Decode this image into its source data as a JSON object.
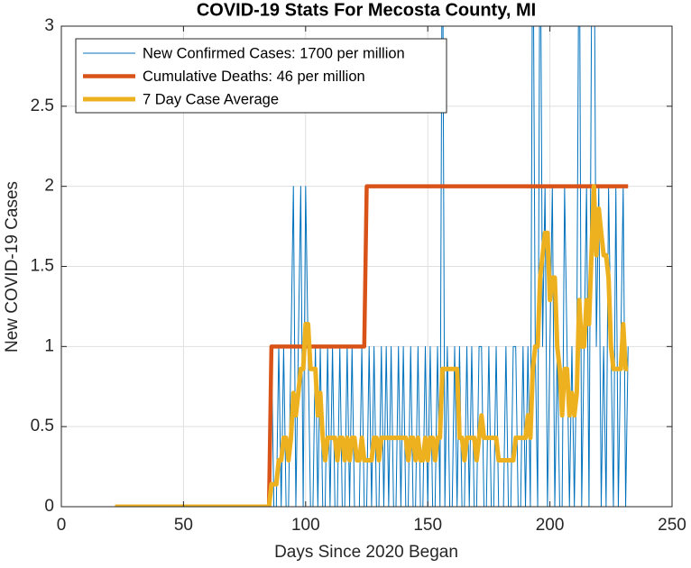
{
  "chart_data": {
    "type": "line",
    "title": "COVID-19 Stats For Mecosta County, MI",
    "xlabel": "Days Since 2020 Began",
    "ylabel": "New COVID-19 Cases",
    "xlim": [
      0,
      250
    ],
    "xticks": [
      0,
      50,
      100,
      150,
      200,
      250
    ],
    "ylim": [
      0,
      3
    ],
    "yticks": [
      0,
      0.5,
      1,
      1.5,
      2,
      2.5,
      3
    ],
    "grid": true,
    "legend": "top-left",
    "x": [
      22,
      23,
      24,
      25,
      26,
      27,
      28,
      29,
      30,
      31,
      32,
      33,
      34,
      35,
      36,
      37,
      38,
      39,
      40,
      41,
      42,
      43,
      44,
      45,
      46,
      47,
      48,
      49,
      50,
      51,
      52,
      53,
      54,
      55,
      56,
      57,
      58,
      59,
      60,
      61,
      62,
      63,
      64,
      65,
      66,
      67,
      68,
      69,
      70,
      71,
      72,
      73,
      74,
      75,
      76,
      77,
      78,
      79,
      80,
      81,
      82,
      83,
      84,
      85,
      86,
      87,
      88,
      89,
      90,
      91,
      92,
      93,
      94,
      95,
      96,
      97,
      98,
      99,
      100,
      101,
      102,
      103,
      104,
      105,
      106,
      107,
      108,
      109,
      110,
      111,
      112,
      113,
      114,
      115,
      116,
      117,
      118,
      119,
      120,
      121,
      122,
      123,
      124,
      125,
      126,
      127,
      128,
      129,
      130,
      131,
      132,
      133,
      134,
      135,
      136,
      137,
      138,
      139,
      140,
      141,
      142,
      143,
      144,
      145,
      146,
      147,
      148,
      149,
      150,
      151,
      152,
      153,
      154,
      155,
      156,
      157,
      158,
      159,
      160,
      161,
      162,
      163,
      164,
      165,
      166,
      167,
      168,
      169,
      170,
      171,
      172,
      173,
      174,
      175,
      176,
      177,
      178,
      179,
      180,
      181,
      182,
      183,
      184,
      185,
      186,
      187,
      188,
      189,
      190,
      191,
      192,
      193,
      194,
      195,
      196,
      197,
      198,
      199,
      200,
      201,
      202,
      203,
      204,
      205,
      206,
      207,
      208,
      209,
      210,
      211,
      212,
      213,
      214,
      215,
      216,
      217,
      218,
      219,
      220,
      221,
      222,
      223,
      224,
      225,
      226,
      227,
      228,
      229,
      230,
      231,
      232
    ],
    "series": [
      {
        "name": "New Confirmed Cases: 1700 per million",
        "color": "#0072bd",
        "width": 1,
        "values": [
          0,
          0,
          0,
          0,
          0,
          0,
          0,
          0,
          0,
          0,
          0,
          0,
          0,
          0,
          0,
          0,
          0,
          0,
          0,
          0,
          0,
          0,
          0,
          0,
          0,
          0,
          0,
          0,
          0,
          0,
          0,
          0,
          0,
          0,
          0,
          0,
          0,
          0,
          0,
          0,
          0,
          0,
          0,
          0,
          0,
          0,
          0,
          0,
          0,
          0,
          0,
          0,
          0,
          0,
          0,
          0,
          0,
          0,
          0,
          0,
          0,
          0,
          0,
          0,
          1,
          0,
          0,
          1,
          0,
          1,
          0,
          0,
          1,
          2,
          0,
          1,
          2,
          0,
          2,
          1,
          0,
          0,
          1,
          0,
          1,
          0,
          0,
          1,
          0,
          1,
          0,
          0,
          1,
          0,
          0,
          1,
          0,
          1,
          0,
          0,
          0,
          1,
          0,
          0,
          1,
          0,
          1,
          0,
          0,
          1,
          0,
          1,
          0,
          1,
          0,
          0,
          1,
          0,
          1,
          0,
          0,
          1,
          0,
          0,
          1,
          0,
          0,
          1,
          0,
          1,
          0,
          0,
          1,
          0,
          4,
          0,
          1,
          0,
          0,
          1,
          0,
          1,
          0,
          0,
          1,
          0,
          1,
          0,
          0,
          1,
          1,
          0,
          0,
          1,
          0,
          0,
          1,
          0,
          0,
          0,
          1,
          0,
          0,
          1,
          1,
          0,
          0,
          1,
          0,
          1,
          0,
          4,
          1,
          0,
          4,
          1,
          2,
          0,
          1,
          2,
          0,
          1,
          0,
          0,
          2,
          1,
          0,
          1,
          0,
          1,
          4,
          0,
          1,
          2,
          0,
          3,
          4,
          1,
          2,
          0,
          1,
          0,
          2,
          1,
          0,
          2,
          0,
          1,
          2,
          0,
          1
        ]
      },
      {
        "name": "Cumulative Deaths: 46 per million",
        "color": "#d95319",
        "width": 4.5,
        "x": [
          22,
          85,
          86,
          124,
          125,
          232
        ],
        "values": [
          0,
          0,
          1,
          1,
          2,
          2
        ]
      },
      {
        "name": "7 Day Case Average",
        "color": "#edb120",
        "width": 5,
        "values": [
          0,
          0,
          0,
          0,
          0,
          0,
          0,
          0,
          0,
          0,
          0,
          0,
          0,
          0,
          0,
          0,
          0,
          0,
          0,
          0,
          0,
          0,
          0,
          0,
          0,
          0,
          0,
          0,
          0,
          0,
          0,
          0,
          0,
          0,
          0,
          0,
          0,
          0,
          0,
          0,
          0,
          0,
          0,
          0,
          0,
          0,
          0,
          0,
          0,
          0,
          0,
          0,
          0,
          0,
          0,
          0,
          0,
          0,
          0,
          0,
          0,
          0,
          0,
          0,
          0.14,
          0.14,
          0.14,
          0.29,
          0.29,
          0.43,
          0.43,
          0.29,
          0.43,
          0.71,
          0.57,
          0.71,
          0.86,
          0.86,
          1.14,
          1.14,
          0.86,
          0.86,
          0.86,
          0.57,
          0.71,
          0.43,
          0.29,
          0.43,
          0.43,
          0.43,
          0.43,
          0.29,
          0.43,
          0.43,
          0.29,
          0.43,
          0.29,
          0.43,
          0.43,
          0.29,
          0.29,
          0.43,
          0.29,
          0.29,
          0.29,
          0.29,
          0.43,
          0.43,
          0.29,
          0.43,
          0.43,
          0.43,
          0.43,
          0.43,
          0.43,
          0.43,
          0.43,
          0.43,
          0.43,
          0.43,
          0.29,
          0.43,
          0.43,
          0.29,
          0.43,
          0.29,
          0.29,
          0.43,
          0.29,
          0.43,
          0.43,
          0.29,
          0.43,
          0.43,
          0.86,
          0.86,
          0.86,
          0.86,
          0.86,
          0.86,
          0.86,
          0.43,
          0.43,
          0.29,
          0.43,
          0.43,
          0.43,
          0.43,
          0.29,
          0.43,
          0.57,
          0.43,
          0.43,
          0.43,
          0.43,
          0.43,
          0.43,
          0.29,
          0.29,
          0.29,
          0.29,
          0.29,
          0.29,
          0.29,
          0.43,
          0.43,
          0.43,
          0.43,
          0.43,
          0.57,
          0.43,
          0.86,
          1,
          1,
          1.43,
          1.57,
          1.71,
          1.71,
          1.29,
          1.43,
          1.43,
          1,
          0.86,
          0.57,
          0.86,
          0.86,
          0.57,
          0.71,
          0.57,
          0.71,
          1.29,
          1,
          1,
          1.29,
          1.14,
          1.57,
          2,
          1.57,
          1.86,
          1.71,
          1.57,
          1.57,
          1.43,
          1,
          0.86,
          0.86,
          0.86,
          0.86,
          1.14,
          0.86,
          0.86
        ]
      }
    ]
  }
}
